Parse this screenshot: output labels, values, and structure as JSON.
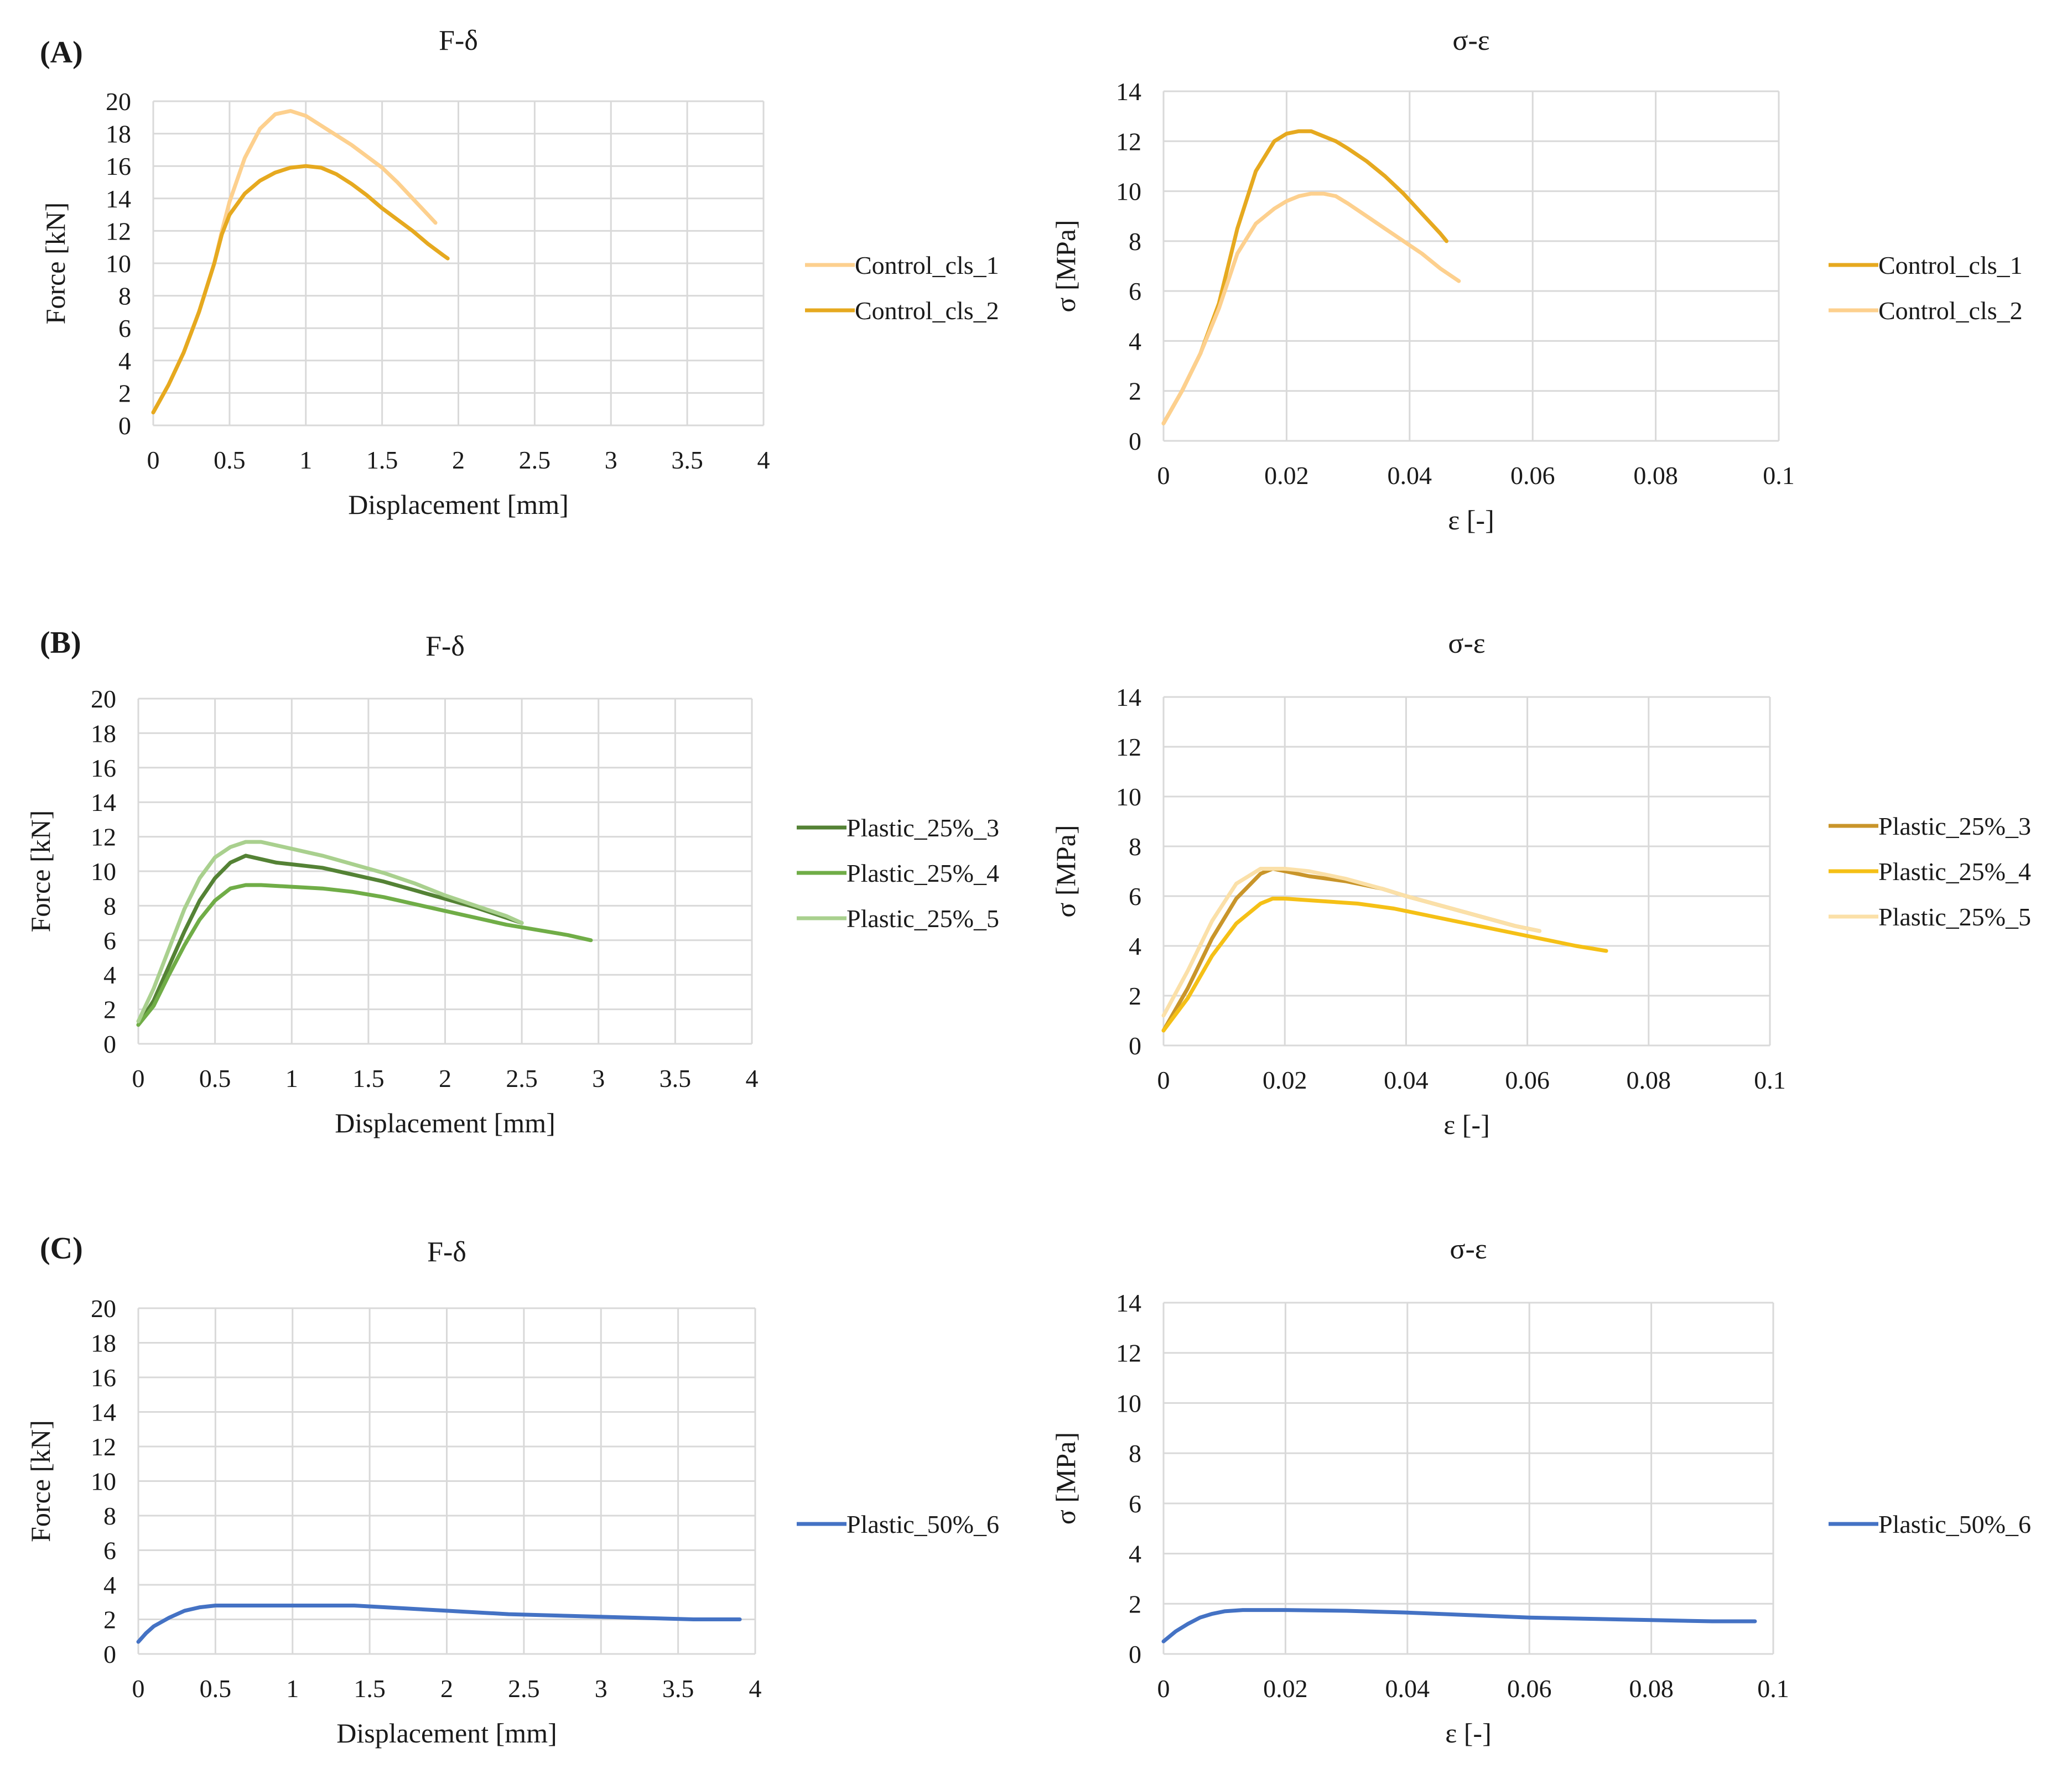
{
  "panels": [
    {
      "label": "(A)"
    },
    {
      "label": "(B)"
    },
    {
      "label": "(C)"
    }
  ],
  "chart_data": [
    {
      "panel": "(A)",
      "type": "line",
      "title": "F-δ",
      "xlabel": "Displacement [mm]",
      "ylabel": "Force [kN]",
      "xlim": [
        0,
        4
      ],
      "ylim": [
        0,
        20
      ],
      "xticks": [
        0,
        0.5,
        1,
        1.5,
        2,
        2.5,
        3,
        3.5,
        4
      ],
      "xtick_labels": [
        "0",
        "0.5",
        "1",
        "1.5",
        "2",
        "2.5",
        "3",
        "3.5",
        "4"
      ],
      "yticks": [
        0,
        2,
        4,
        6,
        8,
        10,
        12,
        14,
        16,
        18,
        20
      ],
      "ytick_labels": [
        "0",
        "2",
        "4",
        "6",
        "8",
        "10",
        "12",
        "14",
        "16",
        "18",
        "20"
      ],
      "grid": true,
      "legend_position": "right",
      "series": [
        {
          "name": "Control_cls_1",
          "color": "#fdd08e",
          "x": [
            0,
            0.1,
            0.2,
            0.3,
            0.4,
            0.45,
            0.5,
            0.6,
            0.7,
            0.8,
            0.9,
            1.0,
            1.1,
            1.2,
            1.3,
            1.4,
            1.5,
            1.6,
            1.7,
            1.8,
            1.85
          ],
          "y": [
            0.8,
            2.5,
            4.5,
            7.0,
            10.0,
            12.0,
            13.8,
            16.5,
            18.3,
            19.2,
            19.4,
            19.1,
            18.5,
            17.9,
            17.3,
            16.6,
            15.9,
            15.0,
            14.0,
            13.0,
            12.5
          ]
        },
        {
          "name": "Control_cls_2",
          "color": "#e6a91f",
          "x": [
            0,
            0.1,
            0.2,
            0.3,
            0.4,
            0.45,
            0.5,
            0.6,
            0.7,
            0.8,
            0.9,
            1.0,
            1.1,
            1.2,
            1.3,
            1.4,
            1.5,
            1.6,
            1.7,
            1.8,
            1.9,
            1.93
          ],
          "y": [
            0.8,
            2.5,
            4.5,
            7.0,
            10.0,
            11.8,
            13.0,
            14.3,
            15.1,
            15.6,
            15.9,
            16.0,
            15.9,
            15.5,
            14.9,
            14.2,
            13.4,
            12.7,
            12.0,
            11.2,
            10.5,
            10.3
          ]
        }
      ]
    },
    {
      "panel": "(A)",
      "type": "line",
      "title": "σ-ε",
      "xlabel": "ε [-]",
      "ylabel": "σ [MPa]",
      "xlim": [
        0,
        0.1
      ],
      "ylim": [
        0,
        14
      ],
      "xticks": [
        0,
        0.02,
        0.04,
        0.06,
        0.08,
        0.1
      ],
      "xtick_labels": [
        "0",
        "0.02",
        "0.04",
        "0.06",
        "0.08",
        "0.1"
      ],
      "yticks": [
        0,
        2,
        4,
        6,
        8,
        10,
        12,
        14
      ],
      "ytick_labels": [
        "0",
        "2",
        "4",
        "6",
        "8",
        "10",
        "12",
        "14"
      ],
      "grid": true,
      "legend_position": "right",
      "series": [
        {
          "name": "Control_cls_1",
          "color": "#e6a91f",
          "x": [
            0,
            0.003,
            0.006,
            0.009,
            0.012,
            0.015,
            0.018,
            0.02,
            0.022,
            0.024,
            0.026,
            0.028,
            0.03,
            0.033,
            0.036,
            0.039,
            0.042,
            0.045,
            0.046
          ],
          "y": [
            0.7,
            2.0,
            3.5,
            5.5,
            8.5,
            10.8,
            12.0,
            12.3,
            12.4,
            12.4,
            12.2,
            12.0,
            11.7,
            11.2,
            10.6,
            9.9,
            9.1,
            8.3,
            8.0
          ]
        },
        {
          "name": "Control_cls_2",
          "color": "#fdd08e",
          "x": [
            0,
            0.003,
            0.006,
            0.009,
            0.012,
            0.015,
            0.018,
            0.02,
            0.022,
            0.024,
            0.026,
            0.028,
            0.03,
            0.033,
            0.036,
            0.039,
            0.042,
            0.045,
            0.048
          ],
          "y": [
            0.7,
            2.0,
            3.5,
            5.3,
            7.5,
            8.7,
            9.3,
            9.6,
            9.8,
            9.9,
            9.9,
            9.8,
            9.5,
            9.0,
            8.5,
            8.0,
            7.5,
            6.9,
            6.4
          ]
        }
      ]
    },
    {
      "panel": "(B)",
      "type": "line",
      "title": "F-δ",
      "xlabel": "Displacement [mm]",
      "ylabel": "Force [kN]",
      "xlim": [
        0,
        4
      ],
      "ylim": [
        0,
        20
      ],
      "xticks": [
        0,
        0.5,
        1,
        1.5,
        2,
        2.5,
        3,
        3.5,
        4
      ],
      "xtick_labels": [
        "0",
        "0.5",
        "1",
        "1.5",
        "2",
        "2.5",
        "3",
        "3.5",
        "4"
      ],
      "yticks": [
        0,
        2,
        4,
        6,
        8,
        10,
        12,
        14,
        16,
        18,
        20
      ],
      "ytick_labels": [
        "0",
        "2",
        "4",
        "6",
        "8",
        "10",
        "12",
        "14",
        "16",
        "18",
        "20"
      ],
      "grid": true,
      "legend_position": "right",
      "series": [
        {
          "name": "Plastic_25%_3",
          "color": "#548235",
          "x": [
            0,
            0.1,
            0.2,
            0.3,
            0.4,
            0.5,
            0.6,
            0.7,
            0.8,
            0.9,
            1.0,
            1.2,
            1.4,
            1.6,
            1.8,
            2.0,
            2.2,
            2.4,
            2.5
          ],
          "y": [
            1.1,
            2.5,
            4.5,
            6.5,
            8.3,
            9.6,
            10.5,
            10.9,
            10.7,
            10.5,
            10.4,
            10.2,
            9.8,
            9.4,
            8.9,
            8.4,
            7.9,
            7.3,
            7.0
          ]
        },
        {
          "name": "Plastic_25%_4",
          "color": "#70ad47",
          "x": [
            0,
            0.1,
            0.2,
            0.3,
            0.4,
            0.5,
            0.6,
            0.7,
            0.8,
            1.0,
            1.2,
            1.4,
            1.6,
            1.8,
            2.0,
            2.2,
            2.4,
            2.6,
            2.8,
            2.95
          ],
          "y": [
            1.1,
            2.2,
            4.0,
            5.7,
            7.2,
            8.3,
            9.0,
            9.2,
            9.2,
            9.1,
            9.0,
            8.8,
            8.5,
            8.1,
            7.7,
            7.3,
            6.9,
            6.6,
            6.3,
            6.0
          ]
        },
        {
          "name": "Plastic_25%_5",
          "color": "#a9d08e",
          "x": [
            0,
            0.1,
            0.2,
            0.3,
            0.4,
            0.5,
            0.6,
            0.7,
            0.8,
            0.9,
            1.0,
            1.2,
            1.4,
            1.6,
            1.8,
            2.0,
            2.2,
            2.4,
            2.5
          ],
          "y": [
            1.3,
            3.2,
            5.5,
            7.8,
            9.6,
            10.8,
            11.4,
            11.7,
            11.7,
            11.5,
            11.3,
            10.9,
            10.4,
            9.9,
            9.3,
            8.6,
            8.0,
            7.4,
            7.0
          ]
        }
      ]
    },
    {
      "panel": "(B)",
      "type": "line",
      "title": "σ-ε",
      "xlabel": "ε [-]",
      "ylabel": "σ [MPa]",
      "xlim": [
        0,
        0.1
      ],
      "ylim": [
        0,
        14
      ],
      "xticks": [
        0,
        0.02,
        0.04,
        0.06,
        0.08,
        0.1
      ],
      "xtick_labels": [
        "0",
        "0.02",
        "0.04",
        "0.06",
        "0.08",
        "0.1"
      ],
      "yticks": [
        0,
        2,
        4,
        6,
        8,
        10,
        12,
        14
      ],
      "ytick_labels": [
        "0",
        "2",
        "4",
        "6",
        "8",
        "10",
        "12",
        "14"
      ],
      "grid": true,
      "legend_position": "right",
      "series": [
        {
          "name": "Plastic_25%_3",
          "color": "#c9952a",
          "x": [
            0,
            0.004,
            0.008,
            0.012,
            0.016,
            0.018,
            0.02,
            0.024,
            0.03,
            0.036,
            0.04,
            0.046,
            0.052,
            0.058,
            0.062
          ],
          "y": [
            0.6,
            2.3,
            4.3,
            5.9,
            6.9,
            7.1,
            7.0,
            6.8,
            6.6,
            6.3,
            6.0,
            5.6,
            5.2,
            4.8,
            4.6
          ]
        },
        {
          "name": "Plastic_25%_4",
          "color": "#f5c016",
          "x": [
            0,
            0.004,
            0.008,
            0.012,
            0.016,
            0.018,
            0.02,
            0.026,
            0.032,
            0.038,
            0.044,
            0.05,
            0.056,
            0.062,
            0.068,
            0.073
          ],
          "y": [
            0.6,
            1.9,
            3.6,
            4.9,
            5.7,
            5.9,
            5.9,
            5.8,
            5.7,
            5.5,
            5.2,
            4.9,
            4.6,
            4.3,
            4.0,
            3.8
          ]
        },
        {
          "name": "Plastic_25%_5",
          "color": "#fbe0a8",
          "x": [
            0,
            0.004,
            0.008,
            0.012,
            0.016,
            0.018,
            0.02,
            0.024,
            0.03,
            0.036,
            0.04,
            0.046,
            0.052,
            0.058,
            0.062
          ],
          "y": [
            1.2,
            3.0,
            5.0,
            6.5,
            7.1,
            7.1,
            7.1,
            7.0,
            6.7,
            6.3,
            6.0,
            5.6,
            5.2,
            4.8,
            4.6
          ]
        }
      ]
    },
    {
      "panel": "(C)",
      "type": "line",
      "title": "F-δ",
      "xlabel": "Displacement [mm]",
      "ylabel": "Force [kN]",
      "xlim": [
        0,
        4
      ],
      "ylim": [
        0,
        20
      ],
      "xticks": [
        0,
        0.5,
        1,
        1.5,
        2,
        2.5,
        3,
        3.5,
        4
      ],
      "xtick_labels": [
        "0",
        "0.5",
        "1",
        "1.5",
        "2",
        "2.5",
        "3",
        "3.5",
        "4"
      ],
      "yticks": [
        0,
        2,
        4,
        6,
        8,
        10,
        12,
        14,
        16,
        18,
        20
      ],
      "ytick_labels": [
        "0",
        "2",
        "4",
        "6",
        "8",
        "10",
        "12",
        "14",
        "16",
        "18",
        "20"
      ],
      "grid": true,
      "legend_position": "right",
      "series": [
        {
          "name": "Plastic_50%_6",
          "color": "#4472c4",
          "x": [
            0,
            0.05,
            0.1,
            0.2,
            0.3,
            0.4,
            0.5,
            0.7,
            1.0,
            1.4,
            1.6,
            2.0,
            2.4,
            2.8,
            3.2,
            3.6,
            3.9
          ],
          "y": [
            0.7,
            1.2,
            1.6,
            2.1,
            2.5,
            2.7,
            2.8,
            2.8,
            2.8,
            2.8,
            2.7,
            2.5,
            2.3,
            2.2,
            2.1,
            2.0,
            2.0
          ]
        }
      ]
    },
    {
      "panel": "(C)",
      "type": "line",
      "title": "σ-ε",
      "xlabel": "ε [-]",
      "ylabel": "σ [MPa]",
      "xlim": [
        0,
        0.1
      ],
      "ylim": [
        0,
        14
      ],
      "xticks": [
        0,
        0.02,
        0.04,
        0.06,
        0.08,
        0.1
      ],
      "xtick_labels": [
        "0",
        "0.02",
        "0.04",
        "0.06",
        "0.08",
        "0.1"
      ],
      "yticks": [
        0,
        2,
        4,
        6,
        8,
        10,
        12,
        14
      ],
      "ytick_labels": [
        "0",
        "2",
        "4",
        "6",
        "8",
        "10",
        "12",
        "14"
      ],
      "grid": true,
      "legend_position": "right",
      "series": [
        {
          "name": "Plastic_50%_6",
          "color": "#4472c4",
          "x": [
            0,
            0.002,
            0.004,
            0.006,
            0.008,
            0.01,
            0.013,
            0.02,
            0.03,
            0.04,
            0.05,
            0.06,
            0.07,
            0.08,
            0.09,
            0.097
          ],
          "y": [
            0.5,
            0.9,
            1.2,
            1.45,
            1.6,
            1.7,
            1.75,
            1.75,
            1.72,
            1.65,
            1.55,
            1.45,
            1.4,
            1.35,
            1.3,
            1.3
          ]
        }
      ]
    }
  ]
}
